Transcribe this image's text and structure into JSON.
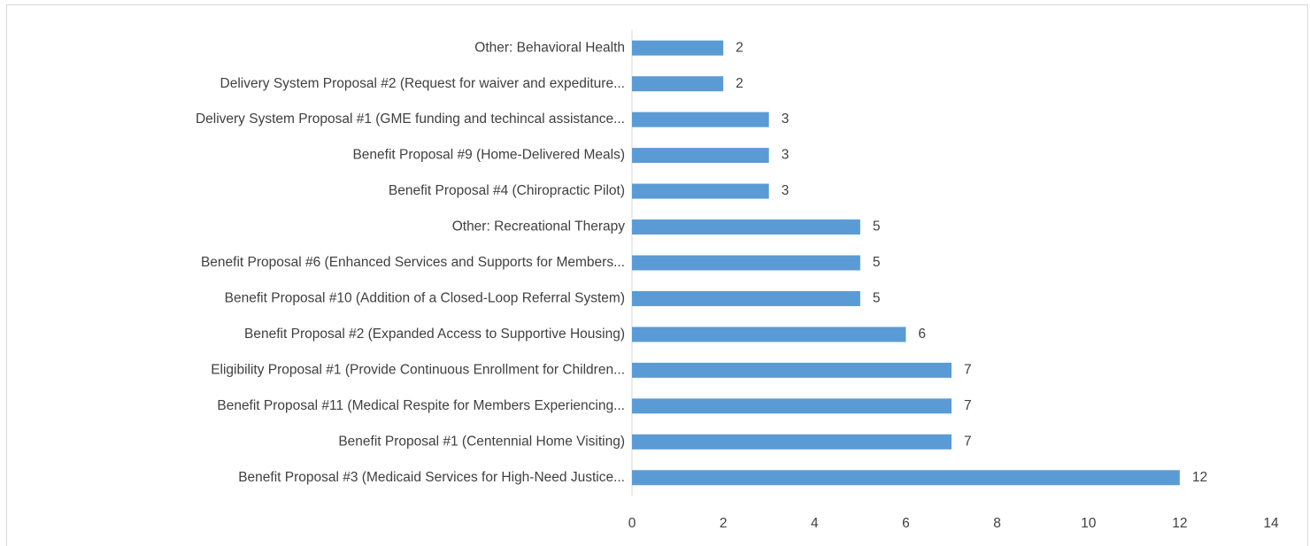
{
  "chart_data": {
    "type": "bar",
    "orientation": "horizontal",
    "categories": [
      "Other: Behavioral Health",
      "Delivery System Proposal #2 (Request for waiver and expediture...",
      "Delivery System Proposal #1 (GME funding and techincal assistance...",
      "Benefit Proposal #9 (Home-Delivered Meals)",
      "Benefit Proposal #4 (Chiropractic Pilot)",
      "Other: Recreational Therapy",
      "Benefit Proposal #6 (Enhanced Services and Supports for Members...",
      "Benefit Proposal #10 (Addition of a Closed-Loop Referral System)",
      "Benefit Proposal #2 (Expanded Access to Supportive Housing)",
      "Eligibility Proposal #1 (Provide Continuous Enrollment for Children...",
      "Benefit Proposal #11 (Medical Respite for Members Experiencing...",
      "Benefit Proposal #1 (Centennial Home Visiting)",
      "Benefit Proposal #3 (Medicaid Services for High-Need Justice..."
    ],
    "values": [
      2,
      2,
      3,
      3,
      3,
      5,
      5,
      5,
      6,
      7,
      7,
      7,
      12
    ],
    "color": "#5b9bd5",
    "xlim": [
      0,
      14
    ],
    "xticks": [
      0,
      2,
      4,
      6,
      8,
      10,
      12,
      14
    ],
    "grid": false,
    "data_labels": true
  }
}
